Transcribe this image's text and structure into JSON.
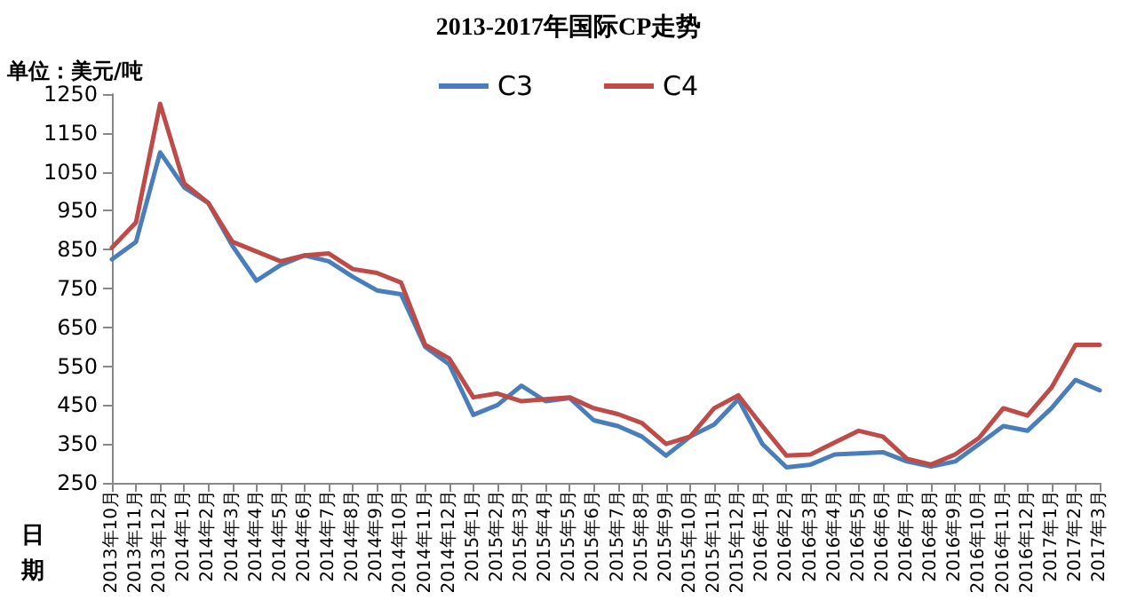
{
  "chart_data": {
    "type": "line",
    "title": "2013-2017年国际CP走势",
    "xlabel": "日期",
    "ylabel": "单位：美元/吨",
    "categories": [
      "2013年10月",
      "2013年11月",
      "2013年12月",
      "2014年1月",
      "2014年2月",
      "2014年3月",
      "2014年4月",
      "2014年5月",
      "2014年6月",
      "2014年7月",
      "2014年8月",
      "2014年9月",
      "2014年10月",
      "2014年11月",
      "2014年12月",
      "2015年1月",
      "2015年2月",
      "2015年3月",
      "2015年4月",
      "2015年5月",
      "2015年6月",
      "2015年7月",
      "2015年8月",
      "2015年9月",
      "2015年10月",
      "2015年11月",
      "2015年12月",
      "2016年1月",
      "2016年2月",
      "2016年3月",
      "2016年4月",
      "2016年5月",
      "2016年6月",
      "2016年7月",
      "2016年8月",
      "2016年9月",
      "2016年10月",
      "2016年11月",
      "2016年12月",
      "2017年1月",
      "2017年2月",
      "2017年3月"
    ],
    "series": [
      {
        "name": "C3",
        "color": "#4a7ebb",
        "values": [
          825,
          870,
          1100,
          1010,
          970,
          860,
          770,
          810,
          835,
          820,
          780,
          745,
          735,
          600,
          555,
          425,
          450,
          500,
          460,
          468,
          411,
          396,
          369,
          320,
          369,
          400,
          465,
          350,
          290,
          297,
          323,
          326,
          329,
          305,
          292,
          305,
          350,
          396,
          384,
          442,
          515,
          488
        ]
      },
      {
        "name": "C4",
        "color": "#be4b48",
        "values": [
          855,
          920,
          1225,
          1020,
          970,
          870,
          845,
          820,
          835,
          840,
          800,
          790,
          765,
          605,
          570,
          470,
          480,
          460,
          465,
          470,
          442,
          427,
          404,
          350,
          369,
          442,
          475,
          396,
          320,
          323,
          354,
          384,
          369,
          312,
          297,
          323,
          366,
          442,
          423,
          495,
          605,
          605
        ]
      }
    ],
    "ylim": [
      250,
      1250
    ],
    "yticks": [
      250,
      350,
      450,
      550,
      650,
      750,
      850,
      950,
      1050,
      1150,
      1250
    ],
    "legend": "top",
    "marker": "none",
    "line_style": "solid"
  }
}
